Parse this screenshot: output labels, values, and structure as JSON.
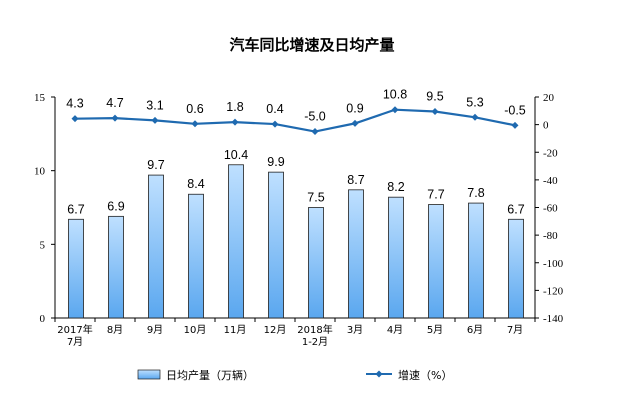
{
  "chart_data": {
    "type": "bar+line",
    "title": "汽车同比增速及日均产量",
    "categories": [
      "2017年 7月",
      "8月",
      "9月",
      "10月",
      "11月",
      "12月",
      "2018年 1-2月",
      "3月",
      "4月",
      "5月",
      "6月",
      "7月"
    ],
    "category_lines": [
      [
        "2017年",
        "7月"
      ],
      [
        "8月"
      ],
      [
        "9月"
      ],
      [
        "10月"
      ],
      [
        "11月"
      ],
      [
        "12月"
      ],
      [
        "2018年",
        "1-2月"
      ],
      [
        "3月"
      ],
      [
        "4月"
      ],
      [
        "5月"
      ],
      [
        "6月"
      ],
      [
        "7月"
      ]
    ],
    "series": [
      {
        "name": "日均产量（万辆）",
        "type": "bar",
        "axis": "left",
        "values": [
          6.7,
          6.9,
          9.7,
          8.4,
          10.4,
          9.9,
          7.5,
          8.7,
          8.2,
          7.7,
          7.8,
          6.7
        ],
        "labels": [
          "6.7",
          "6.9",
          "9.7",
          "8.4",
          "10.4",
          "9.9",
          "7.5",
          "8.7",
          "8.2",
          "7.7",
          "7.8",
          "6.7"
        ]
      },
      {
        "name": "增速（%）",
        "type": "line",
        "axis": "right",
        "values": [
          4.3,
          4.7,
          3.1,
          0.6,
          1.8,
          0.4,
          -5.0,
          0.9,
          10.8,
          9.5,
          5.3,
          -0.5
        ],
        "labels": [
          "4.3",
          "4.7",
          "3.1",
          "0.6",
          "1.8",
          "0.4",
          "-5.0",
          "0.9",
          "10.8",
          "9.5",
          "5.3",
          "-0.5"
        ]
      }
    ],
    "left_axis": {
      "ylim": [
        0,
        15
      ],
      "ticks": [
        0,
        5,
        10,
        15
      ]
    },
    "right_axis": {
      "ylim": [
        -140,
        20
      ],
      "ticks": [
        20,
        0,
        -20,
        -40,
        -60,
        -80,
        -100,
        -120,
        -140
      ]
    },
    "grid": false,
    "legend_position": "bottom"
  },
  "colors": {
    "bar_fill_top": "#bfe0ff",
    "bar_fill_bottom": "#5aa7ef",
    "bar_stroke": "#1f1f1f",
    "line": "#1f6ab0",
    "axis": "#000000"
  }
}
